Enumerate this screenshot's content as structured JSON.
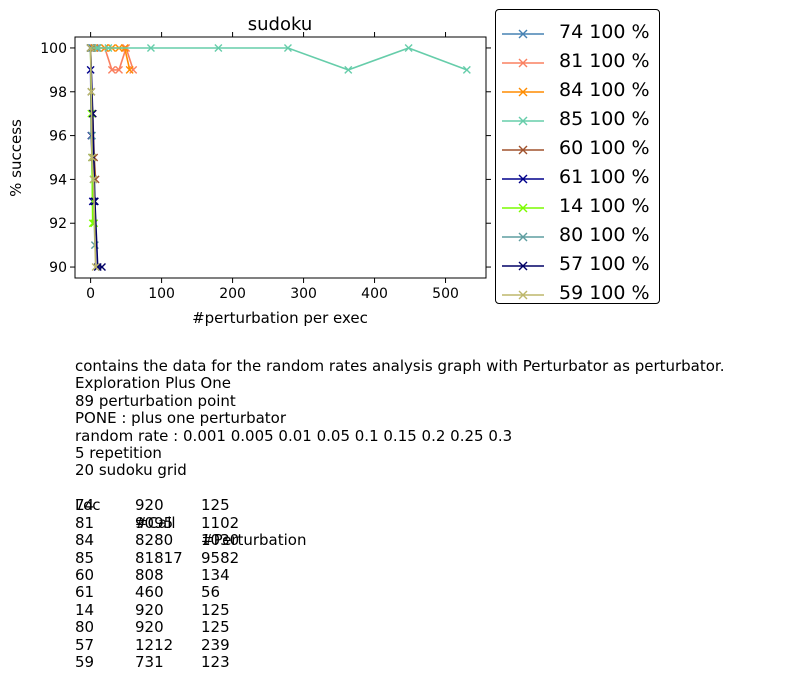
{
  "chart_data": {
    "type": "line",
    "title": "sudoku",
    "xlabel": "#perturbation per exec",
    "ylabel": "% success",
    "xlim": [
      -22,
      557
    ],
    "ylim": [
      89.5,
      100.5
    ],
    "xticks": [
      0,
      100,
      200,
      300,
      400,
      500
    ],
    "yticks": [
      90,
      92,
      94,
      96,
      98,
      100
    ],
    "grid": false,
    "legend_position": "outside-right",
    "marker": "x",
    "series": [
      {
        "name": "74 100 %",
        "color": "#4682b4",
        "x": [
          0,
          1,
          3,
          6,
          9
        ],
        "y": [
          100,
          100,
          100,
          100,
          100
        ]
      },
      {
        "name": "81 100 %",
        "color": "#fa8060",
        "x": [
          0,
          5,
          10,
          20,
          30,
          40,
          50,
          60
        ],
        "y": [
          100,
          100,
          100,
          100,
          99,
          99,
          100,
          99
        ]
      },
      {
        "name": "84 100 %",
        "color": "#ff8c00",
        "x": [
          0,
          5,
          10,
          20,
          30,
          40,
          48,
          55
        ],
        "y": [
          100,
          100,
          100,
          100,
          100,
          100,
          100,
          99
        ]
      },
      {
        "name": "85 100 %",
        "color": "#66cdaa",
        "x": [
          0,
          10,
          25,
          85,
          180,
          278,
          363,
          448,
          530
        ],
        "y": [
          100,
          100,
          100,
          100,
          100,
          100,
          99,
          100,
          99
        ]
      },
      {
        "name": "60 100 %",
        "color": "#a0522d",
        "x": [
          0,
          1,
          3,
          5,
          7
        ],
        "y": [
          100,
          98,
          97,
          95,
          94
        ]
      },
      {
        "name": "61 100 %",
        "color": "#00008b",
        "x": [
          0,
          1,
          2,
          3,
          5
        ],
        "y": [
          99,
          96,
          95,
          93,
          93
        ]
      },
      {
        "name": "14 100 %",
        "color": "#7cfc00",
        "x": [
          0,
          1,
          2,
          3,
          5
        ],
        "y": [
          100,
          97,
          95,
          92,
          92
        ]
      },
      {
        "name": "80 100 %",
        "color": "#5f9ea0",
        "x": [
          0,
          1,
          2,
          4,
          6
        ],
        "y": [
          100,
          98,
          96,
          94,
          91
        ]
      },
      {
        "name": "57 100 %",
        "color": "#000066",
        "x": [
          0,
          3,
          6,
          10,
          16
        ],
        "y": [
          100,
          97,
          93,
          90,
          90
        ]
      },
      {
        "name": "59 100 %",
        "color": "#bdb76b",
        "x": [
          0,
          1,
          2,
          4,
          7
        ],
        "y": [
          100,
          98,
          95,
          94,
          90
        ]
      }
    ]
  },
  "notes": [
    "contains the data for the random rates analysis graph with Perturbator as perturbator.",
    "Exploration Plus One",
    "89 perturbation point",
    "PONE : plus one perturbator",
    "random rate : 0.001 0.005 0.01 0.05 0.1 0.15 0.2 0.25 0.3",
    "5 repetition",
    "20 sudoku grid"
  ],
  "table": {
    "headers": [
      "Loc",
      "#Call",
      "#Perturbation"
    ],
    "rows": [
      [
        "74",
        "920",
        "125"
      ],
      [
        "81",
        "9095",
        "1102"
      ],
      [
        "84",
        "8280",
        "1030"
      ],
      [
        "85",
        "81817",
        "9582"
      ],
      [
        "60",
        "808",
        "134"
      ],
      [
        "61",
        "460",
        "56"
      ],
      [
        "14",
        "920",
        "125"
      ],
      [
        "80",
        "920",
        "125"
      ],
      [
        "57",
        "1212",
        "239"
      ],
      [
        "59",
        "731",
        "123"
      ]
    ]
  }
}
